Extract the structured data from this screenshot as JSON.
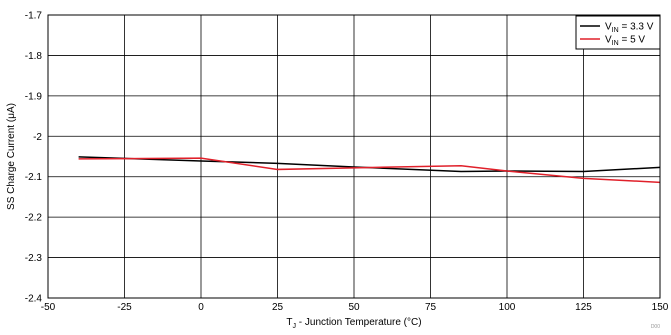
{
  "chart_data": {
    "type": "line",
    "xlabel": "T J - Junction Temperature (°C)",
    "xlabel_parts": {
      "prefix": "T",
      "subscript": "J",
      "suffix": " - Junction Temperature (°C)"
    },
    "ylabel": "SS Charge Current (μA)",
    "xlim": [
      -50,
      150
    ],
    "ylim": [
      -2.4,
      -1.7
    ],
    "x_ticks": [
      -50,
      -25,
      0,
      25,
      50,
      75,
      100,
      125,
      150
    ],
    "y_ticks": [
      -1.7,
      -1.8,
      -1.9,
      -2,
      -2.1,
      -2.2,
      -2.3,
      -2.4
    ],
    "x_tick_labels": [
      "-50",
      "-25",
      "0",
      "25",
      "50",
      "75",
      "100",
      "125",
      "150"
    ],
    "y_tick_labels": [
      "-1.7",
      "-1.8",
      "-1.9",
      "-2",
      "-2.1",
      "-2.2",
      "-2.3",
      "-2.4"
    ],
    "grid": true,
    "legend_position": "top-right",
    "series": [
      {
        "name": "VIN = 3.3 V",
        "name_parts": {
          "prefix": "V",
          "subscript": "IN",
          "suffix": " = 3.3 V"
        },
        "color": "#000000",
        "x": [
          -40,
          0,
          25,
          50,
          85,
          100,
          125,
          150
        ],
        "y": [
          -2.051,
          -2.061,
          -2.067,
          -2.076,
          -2.087,
          -2.086,
          -2.087,
          -2.077
        ]
      },
      {
        "name": "VIN = 5 V",
        "name_parts": {
          "prefix": "V",
          "subscript": "IN",
          "suffix": " = 5 V"
        },
        "color": "#e0202a",
        "x": [
          -40,
          0,
          25,
          50,
          85,
          100,
          125,
          150
        ],
        "y": [
          -2.056,
          -2.054,
          -2.082,
          -2.078,
          -2.073,
          -2.086,
          -2.104,
          -2.114
        ]
      }
    ]
  },
  "watermark": "D00"
}
